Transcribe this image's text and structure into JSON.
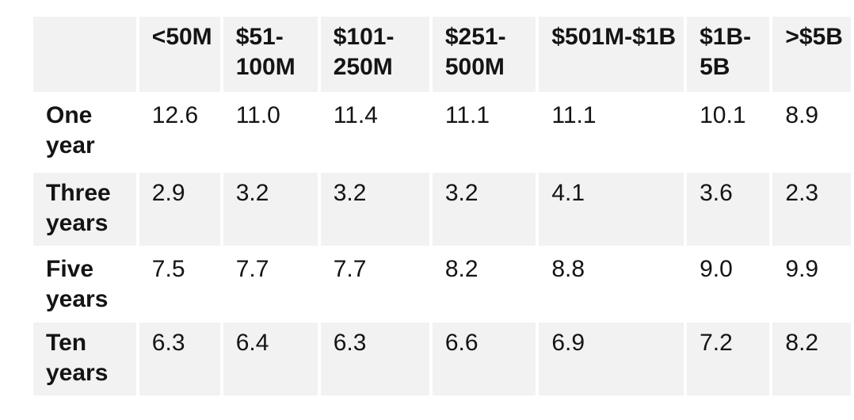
{
  "colors": {
    "row_shade": "#f2f2f2",
    "background": "#ffffff",
    "text": "#141414"
  },
  "table": {
    "corner_label": "",
    "column_headers": [
      "<50M",
      "$51-\n100M",
      "$101-\n250M",
      "$251-\n500M",
      "$501M-$1B",
      "$1B-\n5B",
      ">$5B"
    ],
    "rows": [
      {
        "label": "One\nyear",
        "values": [
          "12.6",
          "11.0",
          "11.4",
          "11.1",
          "11.1",
          "10.1",
          "8.9"
        ]
      },
      {
        "label": "Three\nyears",
        "values": [
          "2.9",
          "3.2",
          "3.2",
          "3.2",
          "4.1",
          "3.6",
          "2.3"
        ]
      },
      {
        "label": "Five\nyears",
        "values": [
          "7.5",
          "7.7",
          "7.7",
          "8.2",
          "8.8",
          "9.0",
          "9.9"
        ]
      },
      {
        "label": "Ten\nyears",
        "values": [
          "6.3",
          "6.4",
          "6.3",
          "6.6",
          "6.9",
          "7.2",
          "8.2"
        ]
      }
    ]
  },
  "chart_data": {
    "type": "table",
    "title": "",
    "columns": [
      "<50M",
      "$51-100M",
      "$101-250M",
      "$251-500M",
      "$501M-$1B",
      "$1B-5B",
      ">$5B"
    ],
    "row_labels": [
      "One year",
      "Three years",
      "Five years",
      "Ten years"
    ],
    "values": [
      [
        12.6,
        11.0,
        11.4,
        11.1,
        11.1,
        10.1,
        8.9
      ],
      [
        2.9,
        3.2,
        3.2,
        3.2,
        4.1,
        3.6,
        2.3
      ],
      [
        7.5,
        7.7,
        7.7,
        8.2,
        8.8,
        9.0,
        9.9
      ],
      [
        6.3,
        6.4,
        6.3,
        6.6,
        6.9,
        7.2,
        8.2
      ]
    ],
    "layout": {
      "shaded_rows": [
        "header",
        "Three years",
        "Ten years"
      ],
      "grid": "cell-gap-spacing"
    }
  }
}
